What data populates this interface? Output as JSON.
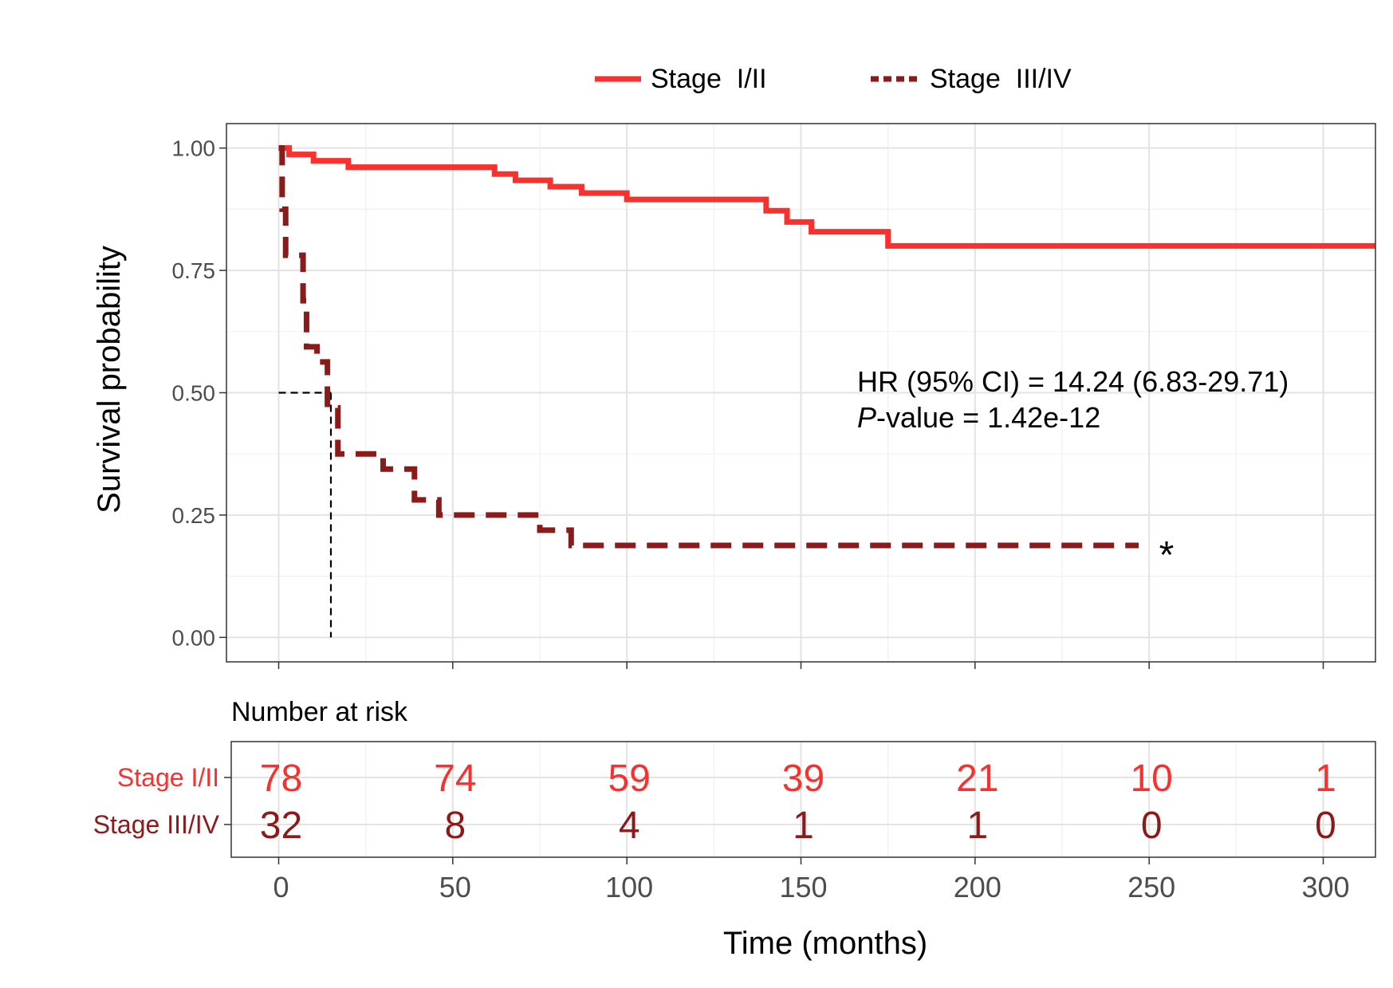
{
  "chart_data": {
    "type": "line",
    "subtype": "kaplan-meier",
    "title": "",
    "xlabel": "Time (months)",
    "ylabel": "Survival probability",
    "xlim": [
      -15,
      315
    ],
    "ylim": [
      -0.05,
      1.05
    ],
    "xticks": [
      0,
      50,
      100,
      150,
      200,
      250,
      300
    ],
    "xtick_labels": [
      "0",
      "50",
      "100",
      "150",
      "200",
      "250",
      "300"
    ],
    "yticks": [
      0,
      0.25,
      0.5,
      0.75,
      1
    ],
    "ytick_labels": [
      "0.00",
      "0.25",
      "0.50",
      "0.75",
      "1.00"
    ],
    "grid": true,
    "legend_position": "top",
    "series": [
      {
        "name": "Stage  I/II",
        "risk_label": "Stage I/II",
        "color": "#f8312f",
        "linestyle": "solid",
        "steps": [
          [
            0,
            1.0
          ],
          [
            3,
            0.987
          ],
          [
            10,
            0.974
          ],
          [
            20,
            0.961
          ],
          [
            62,
            0.947
          ],
          [
            68,
            0.934
          ],
          [
            78,
            0.921
          ],
          [
            87,
            0.908
          ],
          [
            100,
            0.895
          ],
          [
            140,
            0.872
          ],
          [
            146,
            0.849
          ],
          [
            153,
            0.829
          ],
          [
            175,
            0.8
          ],
          [
            315,
            0.8
          ]
        ],
        "at_risk": [
          78,
          74,
          59,
          39,
          21,
          10,
          1
        ]
      },
      {
        "name": "Stage  III/IV",
        "risk_label": "Stage III/IV",
        "color": "#8b1a1a",
        "linestyle": "dashed",
        "steps": [
          [
            0,
            1.0
          ],
          [
            1,
            0.875
          ],
          [
            2,
            0.781
          ],
          [
            7,
            0.688
          ],
          [
            8,
            0.594
          ],
          [
            11,
            0.563
          ],
          [
            14,
            0.469
          ],
          [
            17,
            0.375
          ],
          [
            30,
            0.344
          ],
          [
            39,
            0.281
          ],
          [
            46,
            0.25
          ],
          [
            75,
            0.219
          ],
          [
            84,
            0.188
          ],
          [
            247,
            0.188
          ]
        ],
        "at_risk": [
          32,
          8,
          4,
          1,
          1,
          0,
          0
        ],
        "censor_mark": {
          "x": 255,
          "y": 0.188,
          "label": "*"
        }
      }
    ],
    "median_line": {
      "x": 15,
      "y": 0.5
    },
    "annotation": {
      "line1": "HR (95% CI) = 14.24 (6.83-29.71)",
      "line2_italic": "P",
      "line2_rest": "-value = 1.42e-12",
      "x": 166,
      "y": 0.52
    },
    "risk_table": {
      "title": "Number at risk",
      "times": [
        0,
        50,
        100,
        150,
        200,
        250,
        300
      ]
    }
  }
}
